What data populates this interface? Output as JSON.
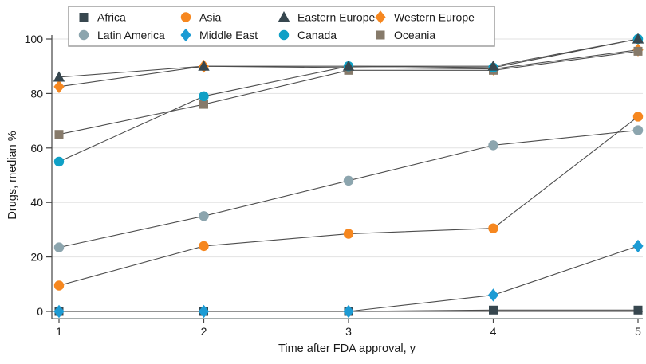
{
  "chart_data": {
    "type": "line",
    "x": [
      1,
      2,
      3,
      4,
      5
    ],
    "xlabel": "Time after FDA approval, y",
    "ylabel": "Drugs, median %",
    "ylim": [
      0,
      100
    ],
    "yticks": [
      0,
      20,
      40,
      60,
      80,
      100
    ],
    "xticks": [
      1,
      2,
      3,
      4,
      5
    ],
    "grid": "horizontal",
    "legend_position": "top-left-box",
    "legend_rows": [
      [
        "Africa",
        "Asia",
        "Eastern Europe",
        "Western Europe"
      ],
      [
        "Latin America",
        "Middle East",
        "Canada",
        "Oceania"
      ]
    ],
    "series": [
      {
        "name": "Africa",
        "marker": "square",
        "color": "#37474F",
        "z": 1,
        "values": [
          0,
          0,
          0,
          0.5,
          0.5
        ]
      },
      {
        "name": "Asia",
        "marker": "circle",
        "color": "#F6871F",
        "z": 3,
        "values": [
          9.5,
          24,
          28.5,
          30.5,
          71.5
        ]
      },
      {
        "name": "Eastern Europe",
        "marker": "triangle",
        "color": "#37474F",
        "z": 8,
        "values": [
          86,
          90,
          90,
          90,
          100
        ]
      },
      {
        "name": "Western Europe",
        "marker": "diamond",
        "color": "#F6871F",
        "z": 4,
        "values": [
          82.5,
          90,
          89.5,
          89,
          96
        ]
      },
      {
        "name": "Latin America",
        "marker": "circle",
        "color": "#8CA5AE",
        "z": 2,
        "values": [
          23.5,
          35,
          48,
          61,
          66.5
        ]
      },
      {
        "name": "Middle East",
        "marker": "diamond",
        "color": "#1C9BD4",
        "z": 7,
        "values": [
          0,
          0,
          0,
          6,
          24
        ]
      },
      {
        "name": "Canada",
        "marker": "circle",
        "color": "#0FA0C6",
        "z": 6,
        "values": [
          55,
          79,
          90,
          89.5,
          100
        ]
      },
      {
        "name": "Oceania",
        "marker": "square",
        "color": "#867A6A",
        "z": 5,
        "values": [
          65,
          76,
          88.5,
          88.5,
          95.5
        ]
      }
    ],
    "colors": {
      "line": "#4d4d4d",
      "zero_line": "#6a6a6a",
      "gridline": "#e2e2e2",
      "axis": "#444444",
      "frame_bottom": "#a6adad",
      "text": "#1a1a1a",
      "legend_border": "#9e9e9e",
      "legend_bg": "#ffffff"
    }
  }
}
